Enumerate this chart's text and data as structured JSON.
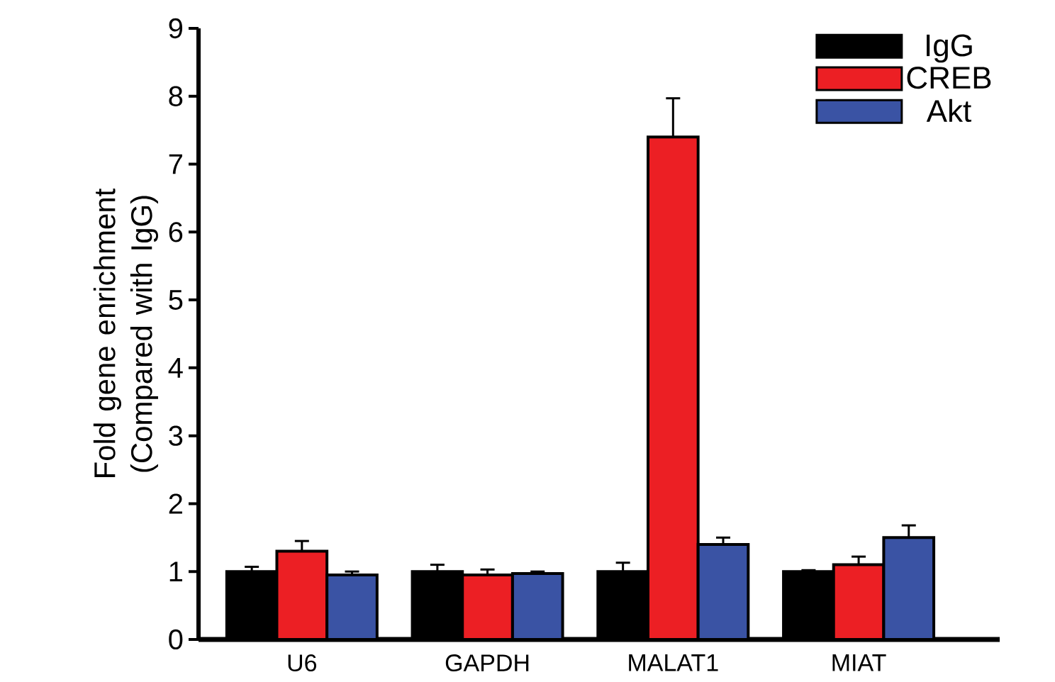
{
  "chart_data": {
    "type": "bar",
    "ylabel": "Fold gene enrichment (Compared with IgG)",
    "categories": [
      "U6",
      "GAPDH",
      "MALAT1",
      "MIAT"
    ],
    "series": [
      {
        "name": "IgG",
        "color": "#000000",
        "values": [
          1.0,
          1.0,
          1.0,
          1.0
        ],
        "errors": [
          0.07,
          0.1,
          0.13,
          0.02
        ]
      },
      {
        "name": "CREB",
        "color": "#ec1f24",
        "values": [
          1.3,
          0.95,
          7.4,
          1.1
        ],
        "errors": [
          0.15,
          0.08,
          0.57,
          0.12
        ]
      },
      {
        "name": "Akt",
        "color": "#3a53a4",
        "values": [
          0.95,
          0.97,
          1.4,
          1.5
        ],
        "errors": [
          0.05,
          0.03,
          0.1,
          0.18
        ]
      }
    ],
    "ylim": [
      0,
      9
    ],
    "yticks": [
      0,
      1,
      2,
      3,
      4,
      5,
      6,
      7,
      8,
      9
    ],
    "grid": false,
    "legend": "top right"
  }
}
